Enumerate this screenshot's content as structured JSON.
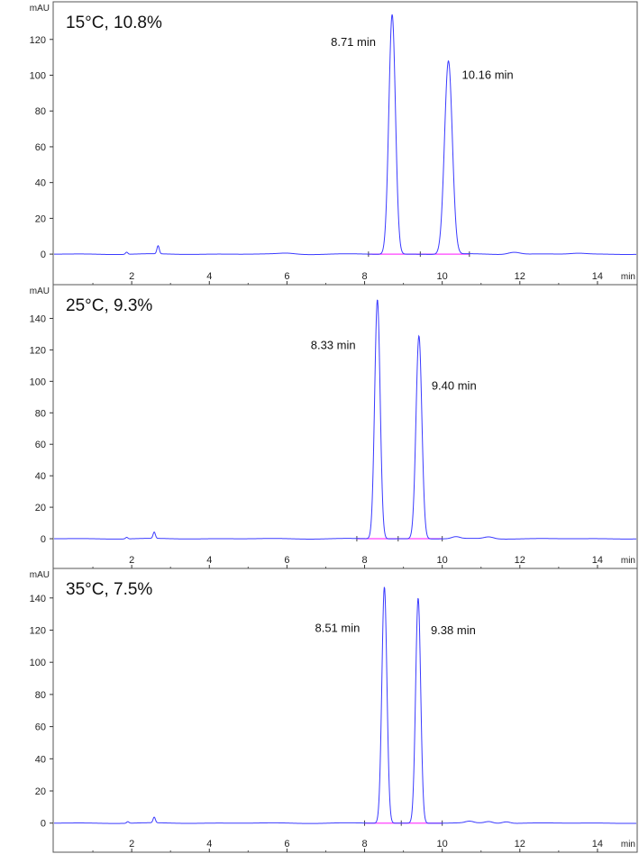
{
  "chart_data": [
    {
      "type": "line",
      "title": "15°C, 10.8%",
      "ylabel": "mAU",
      "xlabel": "min",
      "xlim": [
        0,
        15
      ],
      "ylim": [
        -8,
        138
      ],
      "yticks": [
        0,
        20,
        40,
        60,
        80,
        100,
        120
      ],
      "xticks": [
        2,
        4,
        6,
        8,
        10,
        12,
        14
      ],
      "line_color": "#3a3aff",
      "baseline_color": "#ff40ff",
      "baseline_range": [
        8.1,
        10.7
      ],
      "peaks": [
        {
          "rt": 8.71,
          "height": 134,
          "width": 0.085,
          "label": "8.71 min"
        },
        {
          "rt": 10.16,
          "height": 108,
          "width": 0.1,
          "label": "10.16 min"
        }
      ],
      "minor_peaks": [
        {
          "rt": 1.87,
          "height": 1.2,
          "width": 0.03
        },
        {
          "rt": 2.68,
          "height": 4.5,
          "width": 0.03
        },
        {
          "rt": 11.85,
          "height": 1.2,
          "width": 0.15
        },
        {
          "rt": 6.0,
          "height": 0.5,
          "width": 0.2
        },
        {
          "rt": 13.5,
          "height": 0.5,
          "width": 0.2
        }
      ]
    },
    {
      "type": "line",
      "title": "25°C, 9.3%",
      "ylabel": "mAU",
      "xlabel": "min",
      "xlim": [
        0,
        15
      ],
      "ylim": [
        -8,
        158
      ],
      "yticks": [
        0,
        20,
        40,
        60,
        80,
        100,
        120,
        140
      ],
      "xticks": [
        2,
        4,
        6,
        8,
        10,
        12,
        14
      ],
      "line_color": "#3a3aff",
      "baseline_color": "#ff40ff",
      "baseline_range": [
        7.8,
        10.0
      ],
      "peaks": [
        {
          "rt": 8.33,
          "height": 152,
          "width": 0.07,
          "label": "8.33 min"
        },
        {
          "rt": 9.4,
          "height": 129,
          "width": 0.075,
          "label": "9.40 min"
        }
      ],
      "minor_peaks": [
        {
          "rt": 1.87,
          "height": 1.0,
          "width": 0.03
        },
        {
          "rt": 2.58,
          "height": 4.0,
          "width": 0.03
        },
        {
          "rt": 10.35,
          "height": 1.2,
          "width": 0.1
        },
        {
          "rt": 11.2,
          "height": 1.2,
          "width": 0.12
        }
      ]
    },
    {
      "type": "line",
      "title": "35°C, 7.5%",
      "ylabel": "mAU",
      "xlabel": "min",
      "xlim": [
        0,
        15
      ],
      "ylim": [
        -8,
        155
      ],
      "yticks": [
        0,
        20,
        40,
        60,
        80,
        100,
        120,
        140
      ],
      "xticks": [
        2,
        4,
        6,
        8,
        10,
        12,
        14
      ],
      "line_color": "#3a3aff",
      "baseline_color": "#ff40ff",
      "baseline_range": [
        8.0,
        10.0
      ],
      "peaks": [
        {
          "rt": 8.51,
          "height": 147,
          "width": 0.065,
          "label": "8.51 min"
        },
        {
          "rt": 9.38,
          "height": 140,
          "width": 0.065,
          "label": "9.38 min"
        }
      ],
      "minor_peaks": [
        {
          "rt": 1.9,
          "height": 1.0,
          "width": 0.03
        },
        {
          "rt": 2.58,
          "height": 3.5,
          "width": 0.03
        },
        {
          "rt": 10.7,
          "height": 1.0,
          "width": 0.1
        },
        {
          "rt": 11.2,
          "height": 1.0,
          "width": 0.1
        },
        {
          "rt": 11.65,
          "height": 1.0,
          "width": 0.1
        }
      ]
    }
  ]
}
